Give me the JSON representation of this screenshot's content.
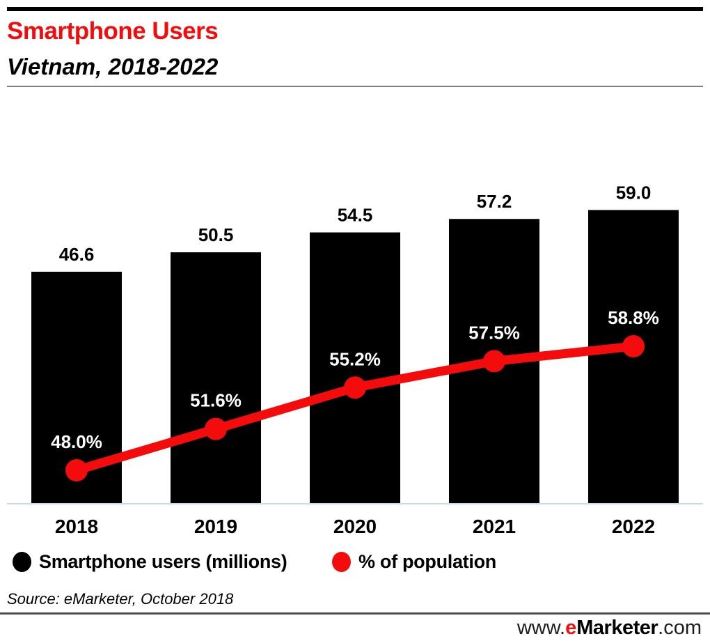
{
  "chart_data": {
    "type": "bar",
    "combo": true,
    "title": "Smartphone Users",
    "subtitle": "Vietnam, 2018-2022",
    "categories": [
      "2018",
      "2019",
      "2020",
      "2021",
      "2022"
    ],
    "series": [
      {
        "name": "Smartphone users (millions)",
        "type": "bar",
        "color": "#000000",
        "values": [
          46.6,
          50.5,
          54.5,
          57.2,
          59.0
        ],
        "labels": [
          "46.6",
          "50.5",
          "54.5",
          "57.2",
          "59.0"
        ]
      },
      {
        "name": "% of population",
        "type": "line",
        "color": "#f40c0c",
        "values": [
          48.0,
          51.6,
          55.2,
          57.5,
          58.8
        ],
        "labels": [
          "48.0%",
          "51.6%",
          "55.2%",
          "57.5%",
          "58.8%"
        ]
      }
    ],
    "xlabel": "",
    "ylabel": "",
    "bar_axis_min": 0,
    "grid": false,
    "legend_position": "bottom-left",
    "value_labels_shown": true
  },
  "source": {
    "text": "Source: eMarketer, October 2018"
  },
  "footer": {
    "www": "www.",
    "brand_e": "e",
    "brand_rest": "Marketer",
    "com": ".com"
  },
  "colors": {
    "accent_red": "#f40c0c",
    "bar_black": "#000000",
    "axis_line": "#ccd8e8",
    "title_underline": "#7f7f7f",
    "footer_divider": "#4d4d4d",
    "percent_label_text": "#ffffff"
  }
}
